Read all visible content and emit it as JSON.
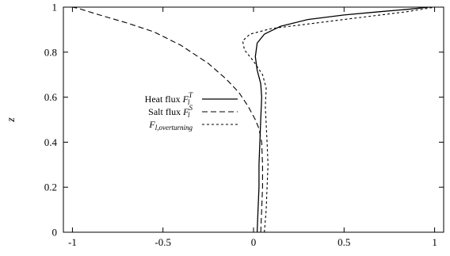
{
  "chart_data": {
    "type": "line",
    "title": "",
    "xlabel": "",
    "ylabel": "z",
    "xlim": [
      -1.05,
      1.05
    ],
    "ylim": [
      0,
      1
    ],
    "grid": false,
    "legend_position": "center-left",
    "x_ticks": [
      {
        "value": -1,
        "label": "-1"
      },
      {
        "value": -0.5,
        "label": "-0.5"
      },
      {
        "value": 0,
        "label": "0"
      },
      {
        "value": 0.5,
        "label": "0.5"
      },
      {
        "value": 1,
        "label": "1"
      }
    ],
    "y_ticks": [
      {
        "value": 0,
        "label": "0"
      },
      {
        "value": 0.2,
        "label": "0.2"
      },
      {
        "value": 0.4,
        "label": "0.4"
      },
      {
        "value": 0.6,
        "label": "0.6"
      },
      {
        "value": 0.8,
        "label": "0.8"
      },
      {
        "value": 1,
        "label": "1"
      }
    ],
    "series": [
      {
        "name": "Heat flux F_l^T",
        "legend": {
          "text": "Heat flux ",
          "sym": "F",
          "sub": "l",
          "sup": "T"
        },
        "style": "solid",
        "points": [
          [
            0.02,
            0.0
          ],
          [
            0.025,
            0.1
          ],
          [
            0.03,
            0.2
          ],
          [
            0.03,
            0.3
          ],
          [
            0.035,
            0.4
          ],
          [
            0.04,
            0.5
          ],
          [
            0.045,
            0.6
          ],
          [
            0.04,
            0.66
          ],
          [
            0.02,
            0.72
          ],
          [
            0.01,
            0.78
          ],
          [
            0.02,
            0.84
          ],
          [
            0.06,
            0.88
          ],
          [
            0.15,
            0.915
          ],
          [
            0.3,
            0.945
          ],
          [
            0.5,
            0.965
          ],
          [
            0.7,
            0.98
          ],
          [
            0.85,
            0.99
          ],
          [
            0.97,
            1.0
          ]
        ]
      },
      {
        "name": "Salt flux F_l^S",
        "legend": {
          "text": "Salt flux ",
          "sym": "F",
          "sub": "l",
          "sup": "S"
        },
        "style": "dashed",
        "points": [
          [
            0.04,
            0.0
          ],
          [
            0.045,
            0.1
          ],
          [
            0.05,
            0.2
          ],
          [
            0.05,
            0.3
          ],
          [
            0.045,
            0.4
          ],
          [
            0.03,
            0.46
          ],
          [
            0.01,
            0.5
          ],
          [
            -0.03,
            0.56
          ],
          [
            -0.08,
            0.62
          ],
          [
            -0.15,
            0.68
          ],
          [
            -0.25,
            0.75
          ],
          [
            -0.4,
            0.83
          ],
          [
            -0.55,
            0.89
          ],
          [
            -0.7,
            0.93
          ],
          [
            -0.85,
            0.965
          ],
          [
            -0.97,
            0.995
          ],
          [
            -1.0,
            1.0
          ]
        ]
      },
      {
        "name": "F_l,overturning",
        "legend": {
          "text": "",
          "sym": "F",
          "sub": "l,overturning",
          "sup": ""
        },
        "style": "dotted",
        "points": [
          [
            0.06,
            0.0
          ],
          [
            0.07,
            0.1
          ],
          [
            0.075,
            0.2
          ],
          [
            0.08,
            0.3
          ],
          [
            0.075,
            0.4
          ],
          [
            0.07,
            0.48
          ],
          [
            0.065,
            0.56
          ],
          [
            0.07,
            0.64
          ],
          [
            0.05,
            0.7
          ],
          [
            0.0,
            0.76
          ],
          [
            -0.05,
            0.81
          ],
          [
            -0.06,
            0.85
          ],
          [
            -0.02,
            0.88
          ],
          [
            0.1,
            0.905
          ],
          [
            0.3,
            0.925
          ],
          [
            0.5,
            0.945
          ],
          [
            0.7,
            0.965
          ],
          [
            0.85,
            0.98
          ],
          [
            1.0,
            1.0
          ]
        ]
      }
    ]
  }
}
